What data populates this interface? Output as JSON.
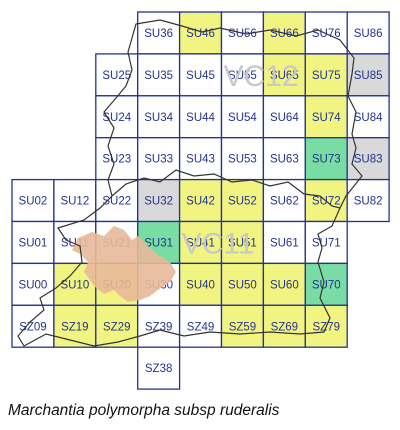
{
  "colors": {
    "grid_line": "#22348f",
    "label": "#22348f",
    "recorded": "#f2f482",
    "recent": "#79dca3",
    "not_recorded_shaded": "#d9d9d9",
    "urban": "#e8b998",
    "boundary": "#333333",
    "vc_label": "#c8c8c8"
  },
  "legend_of_fills": [
    "none",
    "recorded",
    "recent",
    "not_recorded_shaded"
  ],
  "grid": [
    {
      "label": "SU36",
      "col": 3,
      "row": 0,
      "fill": "none"
    },
    {
      "label": "SU46",
      "col": 4,
      "row": 0,
      "fill": "recorded"
    },
    {
      "label": "SU56",
      "col": 5,
      "row": 0,
      "fill": "none"
    },
    {
      "label": "SU66",
      "col": 6,
      "row": 0,
      "fill": "recorded"
    },
    {
      "label": "SU76",
      "col": 7,
      "row": 0,
      "fill": "none"
    },
    {
      "label": "SU86",
      "col": 8,
      "row": 0,
      "fill": "none"
    },
    {
      "label": "SU25",
      "col": 2,
      "row": 1,
      "fill": "none"
    },
    {
      "label": "SU35",
      "col": 3,
      "row": 1,
      "fill": "none"
    },
    {
      "label": "SU45",
      "col": 4,
      "row": 1,
      "fill": "none"
    },
    {
      "label": "SU55",
      "col": 5,
      "row": 1,
      "fill": "none"
    },
    {
      "label": "SU65",
      "col": 6,
      "row": 1,
      "fill": "recorded"
    },
    {
      "label": "SU75",
      "col": 7,
      "row": 1,
      "fill": "recorded"
    },
    {
      "label": "SU85",
      "col": 8,
      "row": 1,
      "fill": "not_recorded_shaded"
    },
    {
      "label": "SU24",
      "col": 2,
      "row": 2,
      "fill": "none"
    },
    {
      "label": "SU34",
      "col": 3,
      "row": 2,
      "fill": "none"
    },
    {
      "label": "SU44",
      "col": 4,
      "row": 2,
      "fill": "none"
    },
    {
      "label": "SU54",
      "col": 5,
      "row": 2,
      "fill": "none"
    },
    {
      "label": "SU64",
      "col": 6,
      "row": 2,
      "fill": "none"
    },
    {
      "label": "SU74",
      "col": 7,
      "row": 2,
      "fill": "recorded"
    },
    {
      "label": "SU84",
      "col": 8,
      "row": 2,
      "fill": "none"
    },
    {
      "label": "SU23",
      "col": 2,
      "row": 3,
      "fill": "none"
    },
    {
      "label": "SU33",
      "col": 3,
      "row": 3,
      "fill": "none"
    },
    {
      "label": "SU43",
      "col": 4,
      "row": 3,
      "fill": "none"
    },
    {
      "label": "SU53",
      "col": 5,
      "row": 3,
      "fill": "none"
    },
    {
      "label": "SU63",
      "col": 6,
      "row": 3,
      "fill": "none"
    },
    {
      "label": "SU73",
      "col": 7,
      "row": 3,
      "fill": "recent"
    },
    {
      "label": "SU83",
      "col": 8,
      "row": 3,
      "fill": "not_recorded_shaded"
    },
    {
      "label": "SU02",
      "col": 0,
      "row": 4,
      "fill": "none"
    },
    {
      "label": "SU12",
      "col": 1,
      "row": 4,
      "fill": "none"
    },
    {
      "label": "SU22",
      "col": 2,
      "row": 4,
      "fill": "none"
    },
    {
      "label": "SU32",
      "col": 3,
      "row": 4,
      "fill": "not_recorded_shaded"
    },
    {
      "label": "SU42",
      "col": 4,
      "row": 4,
      "fill": "recorded"
    },
    {
      "label": "SU52",
      "col": 5,
      "row": 4,
      "fill": "recorded"
    },
    {
      "label": "SU62",
      "col": 6,
      "row": 4,
      "fill": "none"
    },
    {
      "label": "SU72",
      "col": 7,
      "row": 4,
      "fill": "recorded"
    },
    {
      "label": "SU82",
      "col": 8,
      "row": 4,
      "fill": "none"
    },
    {
      "label": "SU01",
      "col": 0,
      "row": 5,
      "fill": "none"
    },
    {
      "label": "SU11",
      "col": 1,
      "row": 5,
      "fill": "none"
    },
    {
      "label": "SU21",
      "col": 2,
      "row": 5,
      "fill": "none"
    },
    {
      "label": "SU31",
      "col": 3,
      "row": 5,
      "fill": "recent"
    },
    {
      "label": "SU41",
      "col": 4,
      "row": 5,
      "fill": "recorded"
    },
    {
      "label": "SU51",
      "col": 5,
      "row": 5,
      "fill": "recorded"
    },
    {
      "label": "SU61",
      "col": 6,
      "row": 5,
      "fill": "none"
    },
    {
      "label": "SU71",
      "col": 7,
      "row": 5,
      "fill": "none"
    },
    {
      "label": "SU00",
      "col": 0,
      "row": 6,
      "fill": "none"
    },
    {
      "label": "SU10",
      "col": 1,
      "row": 6,
      "fill": "recorded"
    },
    {
      "label": "SU20",
      "col": 2,
      "row": 6,
      "fill": "recorded"
    },
    {
      "label": "SU30",
      "col": 3,
      "row": 6,
      "fill": "none"
    },
    {
      "label": "SU40",
      "col": 4,
      "row": 6,
      "fill": "recorded"
    },
    {
      "label": "SU50",
      "col": 5,
      "row": 6,
      "fill": "recorded"
    },
    {
      "label": "SU60",
      "col": 6,
      "row": 6,
      "fill": "recorded"
    },
    {
      "label": "SU70",
      "col": 7,
      "row": 6,
      "fill": "recent"
    },
    {
      "label": "SZ09",
      "col": 0,
      "row": 7,
      "fill": "none"
    },
    {
      "label": "SZ19",
      "col": 1,
      "row": 7,
      "fill": "recorded"
    },
    {
      "label": "SZ29",
      "col": 2,
      "row": 7,
      "fill": "recorded"
    },
    {
      "label": "SZ39",
      "col": 3,
      "row": 7,
      "fill": "none"
    },
    {
      "label": "SZ49",
      "col": 4,
      "row": 7,
      "fill": "none"
    },
    {
      "label": "SZ59",
      "col": 5,
      "row": 7,
      "fill": "recorded"
    },
    {
      "label": "SZ69",
      "col": 6,
      "row": 7,
      "fill": "recorded"
    },
    {
      "label": "SZ79",
      "col": 7,
      "row": 7,
      "fill": "recorded"
    },
    {
      "label": "SZ38",
      "col": 3,
      "row": 8,
      "fill": "none"
    }
  ],
  "vice_county_labels": [
    {
      "text": "VC12",
      "col": 5,
      "row": 1
    },
    {
      "text": "VC11",
      "col": 4,
      "row": 5
    }
  ],
  "caption": "Marchantia polymorpha subsp ruderalis"
}
